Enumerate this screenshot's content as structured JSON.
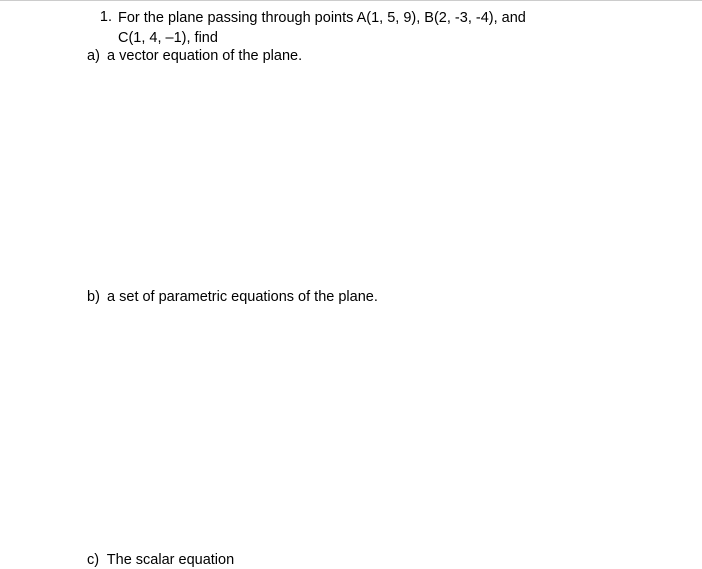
{
  "question": {
    "number": "1.",
    "line1": "For the plane passing through points A(1, 5, 9), B(2, -3, -4), and",
    "line2": "C(1, 4, –1), find"
  },
  "parts": {
    "a": {
      "label": "a)",
      "text": "a vector equation of the plane."
    },
    "b": {
      "label": "b)",
      "text": "a set of parametric equations of the plane."
    },
    "c": {
      "label": "c)",
      "text": "The scalar equation"
    }
  },
  "style": {
    "font_size": 14.5,
    "text_color": "#000000",
    "background_color": "#ffffff",
    "border_color": "#cccccc",
    "content_left_padding": 98,
    "part_b_gap": 223,
    "part_c_gap": 244
  }
}
